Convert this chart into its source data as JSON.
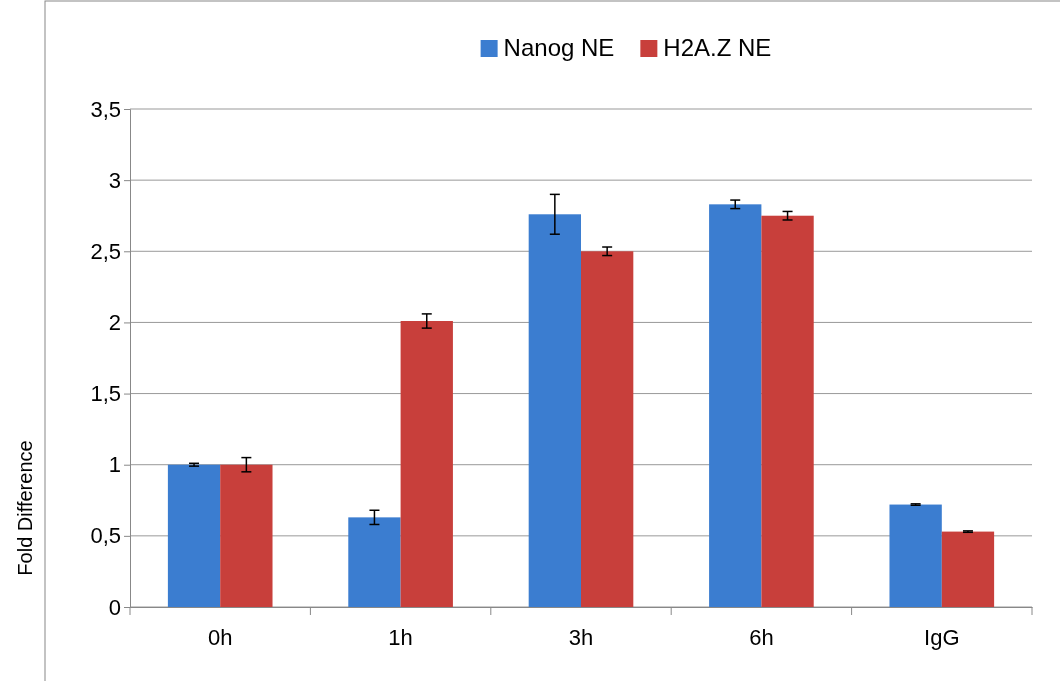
{
  "chart_data": {
    "type": "bar",
    "ylabel": "Fold Difference",
    "categories": [
      "0h",
      "1h",
      "3h",
      "6h",
      "IgG"
    ],
    "series": [
      {
        "name": "Nanog NE",
        "color": "#3b7dd0",
        "values": [
          1.0,
          0.63,
          2.76,
          2.83,
          0.72
        ],
        "errors": [
          0.01,
          0.05,
          0.14,
          0.03,
          0.005
        ]
      },
      {
        "name": "H2A.Z NE",
        "color": "#c83f3b",
        "values": [
          1.0,
          2.01,
          2.5,
          2.75,
          0.53
        ],
        "errors": [
          0.05,
          0.05,
          0.03,
          0.03,
          0.005
        ]
      }
    ],
    "ylim": [
      0,
      3.5
    ],
    "yticks": [
      0,
      {
        "value": 0.5,
        "label": "0,5"
      },
      1,
      {
        "value": 1.5,
        "label": "1,5"
      },
      2,
      {
        "value": 2.5,
        "label": "2,5"
      },
      3,
      {
        "value": 3.5,
        "label": "3,5"
      }
    ],
    "grid": "y",
    "legend": "top"
  }
}
